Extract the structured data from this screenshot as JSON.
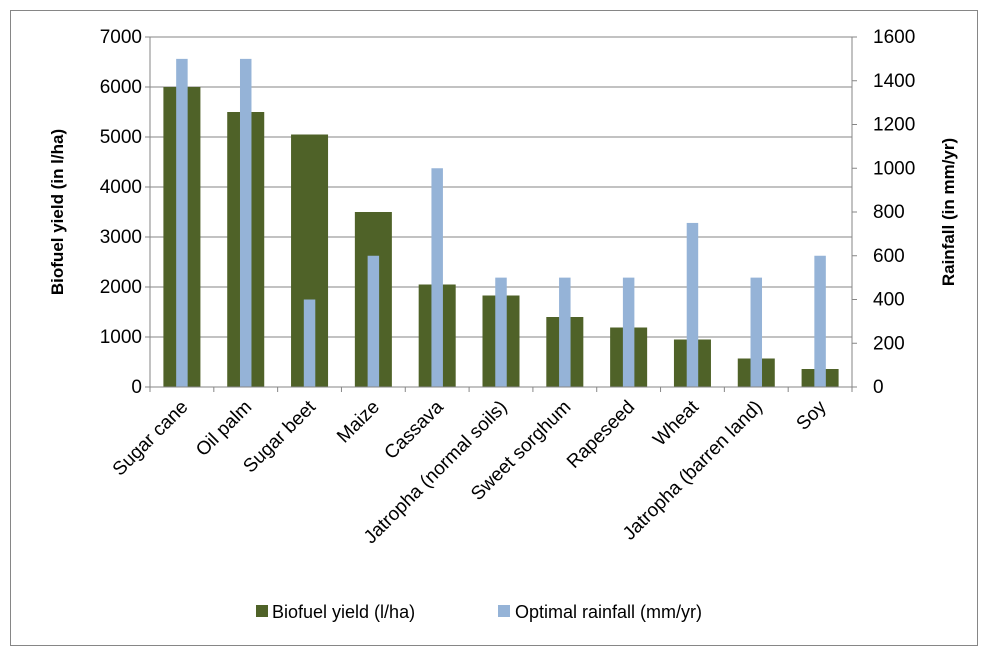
{
  "chart_data": {
    "type": "bar",
    "categories": [
      "Sugar cane",
      "Oil palm",
      "Sugar beet",
      "Maize",
      "Cassava",
      "Jatropha (normal soils)",
      "Sweet sorghum",
      "Rapeseed",
      "Wheat",
      "Jatropha (barren land)",
      "Soy"
    ],
    "series": [
      {
        "name": "Biofuel yield (l/ha)",
        "axis": "left",
        "color": "#4f6228",
        "values": [
          6000,
          5500,
          5050,
          3500,
          2050,
          1830,
          1400,
          1190,
          950,
          570,
          360
        ]
      },
      {
        "name": "Optimal rainfall (mm/yr)",
        "axis": "right",
        "color": "#95b3d7",
        "values": [
          1500,
          1500,
          400,
          600,
          1000,
          500,
          500,
          500,
          750,
          500,
          600
        ]
      }
    ],
    "ylabel": "Biofuel yield (in l/ha)",
    "y2label": "Rainfall (in mm/yr)",
    "ylim": [
      0,
      7000
    ],
    "y2lim": [
      0,
      1600
    ],
    "yticks": [
      "0",
      "1000",
      "2000",
      "3000",
      "4000",
      "5000",
      "6000",
      "7000"
    ],
    "y2ticks": [
      "0",
      "200",
      "400",
      "600",
      "800",
      "1000",
      "1200",
      "1400",
      "1600"
    ],
    "grid": true,
    "legend_position": "bottom"
  }
}
